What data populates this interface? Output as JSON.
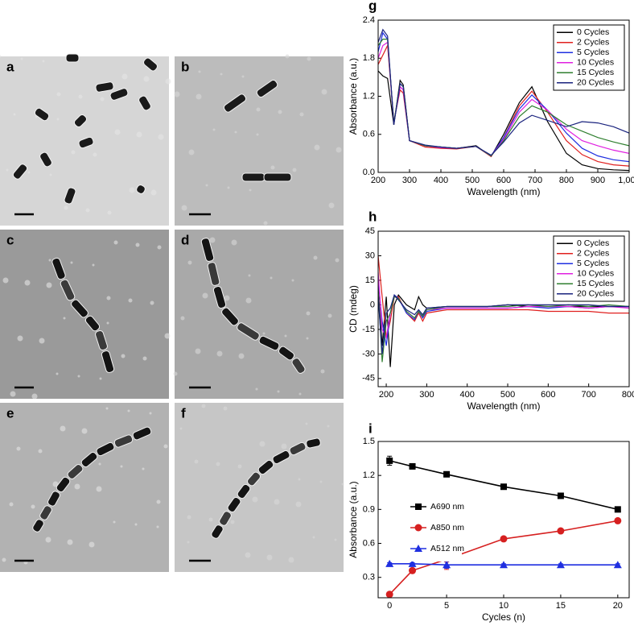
{
  "image_panels": [
    "a",
    "b",
    "c",
    "d",
    "e",
    "f"
  ],
  "chart_data": [
    {
      "type": "line",
      "panel_label": "g",
      "xlabel": "Wavelength (nm)",
      "ylabel": "Absorbance (a.u.)",
      "x": [
        200,
        215,
        230,
        250,
        270,
        280,
        300,
        350,
        400,
        450,
        512,
        560,
        600,
        650,
        690,
        740,
        800,
        850,
        900,
        950,
        1000
      ],
      "xlim": [
        200,
        1000
      ],
      "xticks": [
        200,
        300,
        400,
        500,
        600,
        700,
        800,
        900,
        {
          "value": 1000,
          "label": "1,000"
        }
      ],
      "ylim": [
        0,
        2.4
      ],
      "yticks": [
        {
          "value": 0,
          "label": "0.0"
        },
        0.6,
        1.2,
        1.8,
        2.4
      ],
      "legend": "upper right",
      "series": [
        {
          "name": "0 Cycles",
          "color": "#000000",
          "values": [
            1.6,
            1.52,
            1.48,
            0.75,
            1.45,
            1.38,
            0.5,
            0.42,
            0.4,
            0.38,
            0.42,
            0.25,
            0.6,
            1.1,
            1.35,
            0.8,
            0.3,
            0.12,
            0.06,
            0.04,
            0.03
          ]
        },
        {
          "name": "2 Cycles",
          "color": "#e0201f",
          "values": [
            1.7,
            1.85,
            2.0,
            0.8,
            1.3,
            1.25,
            0.5,
            0.4,
            0.38,
            0.37,
            0.41,
            0.25,
            0.55,
            1.05,
            1.28,
            0.95,
            0.5,
            0.28,
            0.17,
            0.12,
            0.1
          ]
        },
        {
          "name": "5 Cycles",
          "color": "#1f2fe0",
          "values": [
            1.9,
            2.2,
            2.1,
            0.78,
            1.35,
            1.3,
            0.5,
            0.42,
            0.39,
            0.38,
            0.41,
            0.26,
            0.55,
            1.0,
            1.22,
            0.98,
            0.62,
            0.38,
            0.26,
            0.2,
            0.17
          ]
        },
        {
          "name": "10 Cycles",
          "color": "#e020e0",
          "values": [
            1.8,
            2.0,
            2.05,
            0.78,
            1.35,
            1.3,
            0.5,
            0.42,
            0.39,
            0.38,
            0.41,
            0.26,
            0.52,
            0.95,
            1.15,
            0.98,
            0.68,
            0.5,
            0.42,
            0.35,
            0.3
          ]
        },
        {
          "name": "15 Cycles",
          "color": "#2f7f2f",
          "values": [
            2.0,
            2.1,
            2.1,
            0.78,
            1.4,
            1.35,
            0.5,
            0.42,
            0.4,
            0.38,
            0.41,
            0.26,
            0.5,
            0.88,
            1.05,
            0.95,
            0.75,
            0.65,
            0.55,
            0.48,
            0.42
          ]
        },
        {
          "name": "20 Cycles",
          "color": "#1a237e",
          "values": [
            2.05,
            2.25,
            2.15,
            0.75,
            1.4,
            1.35,
            0.5,
            0.43,
            0.4,
            0.38,
            0.41,
            0.27,
            0.48,
            0.78,
            0.9,
            0.82,
            0.72,
            0.8,
            0.78,
            0.72,
            0.62
          ]
        }
      ]
    },
    {
      "type": "line",
      "panel_label": "h",
      "xlabel": "Wavelength (nm)",
      "ylabel": "CD (mdeg)",
      "x": [
        180,
        190,
        200,
        210,
        220,
        230,
        250,
        270,
        280,
        290,
        300,
        350,
        400,
        450,
        500,
        550,
        600,
        650,
        700,
        750,
        800
      ],
      "xlim": [
        180,
        800
      ],
      "xticks": [
        200,
        300,
        400,
        500,
        600,
        700,
        800
      ],
      "ylim": [
        -50,
        45
      ],
      "yticks": [
        -45,
        -30,
        -15,
        0,
        15,
        30,
        45
      ],
      "legend": "upper right",
      "series": [
        {
          "name": "0 Cycles",
          "color": "#000000",
          "values": [
            10,
            -25,
            5,
            -38,
            0,
            6,
            0,
            -3,
            5,
            0,
            -2,
            -1,
            -1,
            -1,
            0,
            -1,
            -1,
            -1,
            -1,
            -1,
            -1
          ]
        },
        {
          "name": "2 Cycles",
          "color": "#e0201f",
          "values": [
            30,
            5,
            -20,
            -10,
            5,
            5,
            -5,
            -10,
            -5,
            -10,
            -5,
            -3,
            -3,
            -3,
            -3,
            -3,
            -4,
            -4,
            -4,
            -5,
            -5
          ]
        },
        {
          "name": "5 Cycles",
          "color": "#1f2fe0",
          "values": [
            15,
            -10,
            -25,
            -5,
            6,
            4,
            -5,
            -9,
            -4,
            -8,
            -4,
            -2,
            -2,
            -2,
            -2,
            -1,
            -2,
            -1,
            -2,
            -1,
            -1
          ]
        },
        {
          "name": "10 Cycles",
          "color": "#e020e0",
          "values": [
            20,
            -15,
            -20,
            -5,
            5,
            4,
            -4,
            -8,
            -4,
            -7,
            -3,
            -2,
            -2,
            -2,
            -2,
            -1,
            -1,
            -1,
            -2,
            -1,
            -2
          ]
        },
        {
          "name": "15 Cycles",
          "color": "#2f7f2f",
          "values": [
            10,
            -35,
            -10,
            -5,
            5,
            4,
            -4,
            -8,
            -4,
            -7,
            -3,
            -1,
            -1,
            -1,
            -1,
            0,
            -1,
            0,
            -1,
            0,
            -1
          ]
        },
        {
          "name": "20 Cycles",
          "color": "#1a237e",
          "values": [
            5,
            -30,
            -5,
            -2,
            6,
            3,
            -3,
            -6,
            -3,
            -6,
            -2,
            -1,
            -1,
            -1,
            0,
            0,
            0,
            0,
            0,
            -1,
            -1
          ]
        }
      ]
    },
    {
      "type": "line",
      "panel_label": "i",
      "xlabel": "Cycles (n)",
      "ylabel": "Absorbance (a.u.)",
      "x": [
        0,
        2,
        5,
        10,
        15,
        20
      ],
      "xlim": [
        -1,
        21
      ],
      "xticks": [
        0,
        5,
        10,
        15,
        20
      ],
      "ylim": [
        0.12,
        1.5
      ],
      "yticks": [
        0.3,
        0.6,
        0.9,
        1.2,
        1.5
      ],
      "legend": "center left",
      "series": [
        {
          "name": "A690 nm",
          "color": "#000000",
          "marker": "square",
          "values": [
            1.33,
            1.28,
            1.21,
            1.1,
            1.02,
            0.9
          ],
          "errors": [
            0.04,
            0.02,
            0.01,
            0.02,
            0.01,
            0.01
          ]
        },
        {
          "name": "A850 nm",
          "color": "#d62020",
          "marker": "circle",
          "values": [
            0.15,
            0.36,
            0.46,
            0.64,
            0.71,
            0.8
          ],
          "errors": [
            0.01,
            0.02,
            0.09,
            0.01,
            0.01,
            0.01
          ]
        },
        {
          "name": "A512 nm",
          "color": "#1f2fe0",
          "marker": "triangle",
          "values": [
            0.42,
            0.42,
            0.41,
            0.41,
            0.41,
            0.41
          ],
          "errors": [
            0.01,
            0.01,
            0.03,
            0.01,
            0.01,
            0.01
          ]
        }
      ]
    }
  ]
}
